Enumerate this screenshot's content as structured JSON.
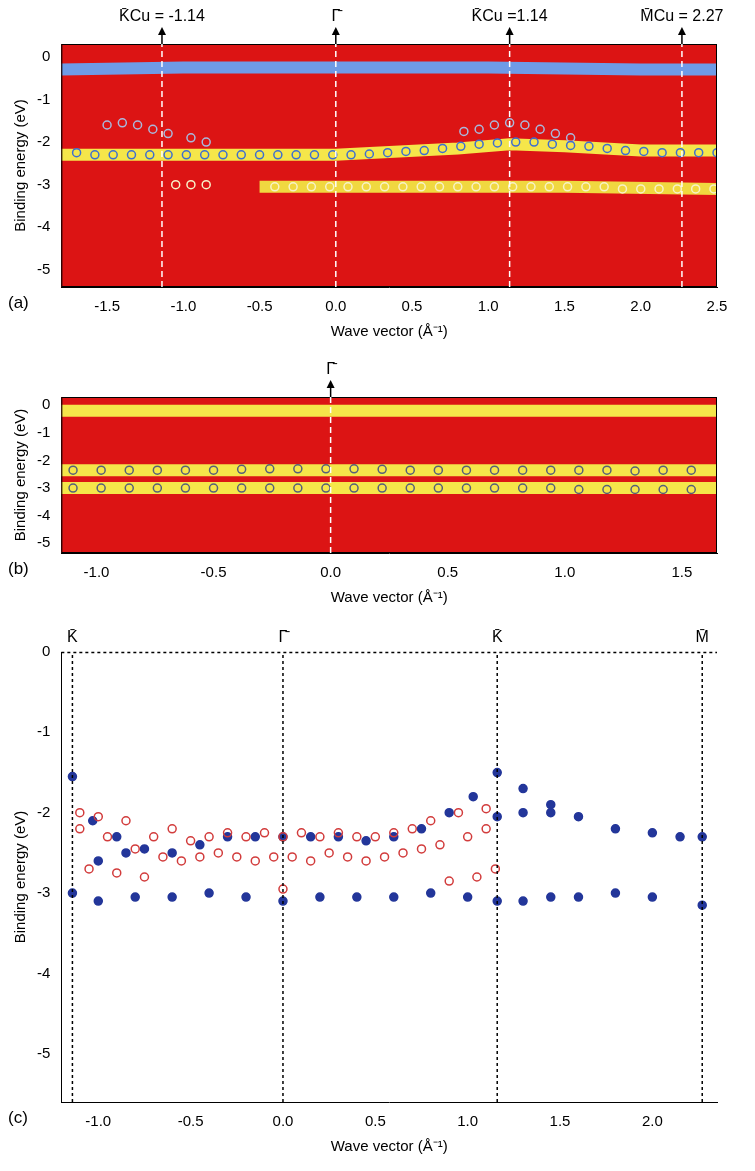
{
  "chart_data": [
    {
      "type": "scatter",
      "panel": "(a)",
      "color": "#dc1414",
      "grid": false,
      "legend": "none",
      "x_label": "Wave vector (Å⁻¹)",
      "y_label": "Binding energy (eV)",
      "xlim": [
        -1.8,
        2.5
      ],
      "xticks": [
        -1.5,
        {
          "value": -1,
          "label": "-1.0"
        },
        -0.5,
        {
          "value": 0,
          "label": "0.0"
        },
        0.5,
        {
          "value": 1,
          "label": "1.0"
        },
        1.5,
        {
          "value": 2,
          "label": "2.0"
        },
        2.5
      ],
      "ylim": [
        -5.4,
        0.3
      ],
      "yticks": [
        0,
        -1,
        -2,
        -3,
        -4,
        -5
      ],
      "annotations": [
        {
          "x": -1.14,
          "text": "K̄Cu = -1.14"
        },
        {
          "x": 0,
          "text": "Γ̄"
        },
        {
          "x": 1.14,
          "text": "K̄Cu =1.14"
        },
        {
          "x": 2.27,
          "text": "M̄Cu = 2.27"
        }
      ],
      "series": [
        {
          "type": "line",
          "marker": "none",
          "line_style": "solid",
          "color": "#6f9be6",
          "x": [
            -1.8,
            -1.0,
            0.0,
            1.0,
            2.0,
            2.5
          ],
          "values": [
            -0.3,
            -0.25,
            -0.25,
            -0.25,
            -0.3,
            -0.3
          ]
        },
        {
          "type": "line",
          "marker": "none",
          "line_style": "solid",
          "color": "#f5e64a",
          "x": [
            -1.8,
            -1.0,
            0.0,
            0.8,
            1.14,
            1.5,
            2.0,
            2.5
          ],
          "values": [
            -2.3,
            -2.3,
            -2.3,
            -2.15,
            -2.05,
            -2.1,
            -2.2,
            -2.2
          ]
        },
        {
          "type": "line",
          "marker": "none",
          "line_style": "solid",
          "color": "#f0d840",
          "x": [
            -0.5,
            0.5,
            1.5,
            2.5
          ],
          "values": [
            -3.05,
            -3.05,
            -3.05,
            -3.1
          ]
        },
        {
          "type": "scatter",
          "marker": "open_circle",
          "color": "#3d6fd0",
          "x": [
            -1.7,
            -1.58,
            -1.46,
            -1.34,
            -1.22,
            -1.1,
            -0.98,
            -0.86,
            -0.74,
            -0.62,
            -0.5,
            -0.38,
            -0.26,
            -0.14,
            -0.02,
            0.1,
            0.22,
            0.34,
            0.46,
            0.58,
            0.7,
            0.82,
            0.94,
            1.06,
            1.18,
            1.3,
            1.42,
            1.54,
            1.66,
            1.78,
            1.9,
            2.02,
            2.14,
            2.26,
            2.38,
            2.5
          ],
          "values": [
            -2.25,
            -2.3,
            -2.3,
            -2.3,
            -2.3,
            -2.3,
            -2.3,
            -2.3,
            -2.3,
            -2.3,
            -2.3,
            -2.3,
            -2.3,
            -2.3,
            -2.3,
            -2.3,
            -2.28,
            -2.25,
            -2.22,
            -2.2,
            -2.15,
            -2.1,
            -2.05,
            -2.02,
            -2.0,
            -2.0,
            -2.05,
            -2.08,
            -2.1,
            -2.15,
            -2.2,
            -2.22,
            -2.25,
            -2.25,
            -2.25,
            -2.25
          ]
        },
        {
          "type": "scatter",
          "marker": "open_circle",
          "color": "#a9b8dc",
          "x": [
            -1.5,
            -1.4,
            -1.3,
            -1.2,
            -1.1,
            -0.95,
            -0.85,
            0.84,
            0.94,
            1.04,
            1.14,
            1.24,
            1.34,
            1.44,
            1.54
          ],
          "values": [
            -1.6,
            -1.55,
            -1.6,
            -1.7,
            -1.8,
            -1.9,
            -2.0,
            -1.75,
            -1.7,
            -1.6,
            -1.55,
            -1.6,
            -1.7,
            -1.8,
            -1.9
          ]
        },
        {
          "type": "scatter",
          "marker": "open_circle",
          "color": "#f7f2c8",
          "x": [
            -1.05,
            -0.95,
            -0.85,
            -0.4,
            -0.28,
            -0.16,
            -0.04,
            0.08,
            0.2,
            0.32,
            0.44,
            0.56,
            0.68,
            0.8,
            0.92,
            1.04,
            1.16,
            1.28,
            1.4,
            1.52,
            1.64,
            1.76,
            1.88,
            2.0,
            2.12,
            2.24,
            2.36,
            2.48
          ],
          "values": [
            -3.0,
            -3.0,
            -3.0,
            -3.05,
            -3.05,
            -3.05,
            -3.05,
            -3.05,
            -3.05,
            -3.05,
            -3.05,
            -3.05,
            -3.05,
            -3.05,
            -3.05,
            -3.05,
            -3.05,
            -3.05,
            -3.05,
            -3.05,
            -3.05,
            -3.05,
            -3.1,
            -3.1,
            -3.1,
            -3.1,
            -3.1,
            -3.1
          ]
        }
      ]
    },
    {
      "type": "scatter",
      "panel": "(b)",
      "color": "#dc1414",
      "grid": false,
      "legend": "none",
      "x_label": "Wave vector (Å⁻¹)",
      "y_label": "Binding energy (eV)",
      "xlim": [
        -1.15,
        1.65
      ],
      "xticks": [
        {
          "value": -1,
          "label": "-1.0"
        },
        -0.5,
        {
          "value": 0,
          "label": "0.0"
        },
        0.5,
        {
          "value": 1,
          "label": "1.0"
        },
        1.5
      ],
      "ylim": [
        -5.35,
        0.3
      ],
      "yticks": [
        0,
        -1,
        -2,
        -3,
        -4,
        -5
      ],
      "annotations": [
        {
          "x": 0,
          "text": "Γ̄"
        }
      ],
      "series": [
        {
          "type": "line",
          "marker": "none",
          "line_style": "solid",
          "color": "#f5e64a",
          "x": [
            -1.15,
            1.65
          ],
          "values": [
            -0.2,
            -0.2
          ]
        },
        {
          "type": "line",
          "marker": "none",
          "line_style": "solid",
          "color": "#f5e64a",
          "x": [
            -1.15,
            1.65
          ],
          "values": [
            -2.35,
            -2.35
          ]
        },
        {
          "type": "line",
          "marker": "none",
          "line_style": "solid",
          "color": "#f5e64a",
          "x": [
            -1.15,
            1.65
          ],
          "values": [
            -3.0,
            -3.0
          ]
        },
        {
          "type": "scatter",
          "marker": "open_circle",
          "color": "#55607a",
          "x": [
            -1.1,
            -0.98,
            -0.86,
            -0.74,
            -0.62,
            -0.5,
            -0.38,
            -0.26,
            -0.14,
            -0.02,
            0.1,
            0.22,
            0.34,
            0.46,
            0.58,
            0.7,
            0.82,
            0.94,
            1.06,
            1.18,
            1.3,
            1.42,
            1.54
          ],
          "values": [
            -2.35,
            -2.35,
            -2.35,
            -2.35,
            -2.35,
            -2.35,
            -2.32,
            -2.3,
            -2.3,
            -2.3,
            -2.3,
            -2.32,
            -2.35,
            -2.35,
            -2.35,
            -2.35,
            -2.35,
            -2.35,
            -2.35,
            -2.35,
            -2.38,
            -2.35,
            -2.35
          ]
        },
        {
          "type": "scatter",
          "marker": "open_circle",
          "color": "#55607a",
          "x": [
            -1.1,
            -0.98,
            -0.86,
            -0.74,
            -0.62,
            -0.5,
            -0.38,
            -0.26,
            -0.14,
            -0.02,
            0.1,
            0.22,
            0.34,
            0.46,
            0.58,
            0.7,
            0.82,
            0.94,
            1.06,
            1.18,
            1.3,
            1.42,
            1.54
          ],
          "values": [
            -3.0,
            -3.0,
            -3.0,
            -3.0,
            -3.0,
            -3.0,
            -3.0,
            -3.0,
            -3.0,
            -3.0,
            -3.0,
            -3.0,
            -3.0,
            -3.0,
            -3.0,
            -3.0,
            -3.0,
            -3.0,
            -3.05,
            -3.05,
            -3.05,
            -3.05,
            -3.05
          ]
        }
      ]
    },
    {
      "type": "scatter",
      "panel": "(c)",
      "grid": false,
      "legend": "none",
      "x_label": "Wave vector (Å⁻¹)",
      "y_label": "Binding energy (eV)",
      "xlim": [
        -1.2,
        2.35
      ],
      "xticks": [
        {
          "value": -1,
          "label": "-1.0"
        },
        -0.5,
        {
          "value": 0,
          "label": "0.0"
        },
        0.5,
        {
          "value": 1,
          "label": "1.0"
        },
        1.5,
        {
          "value": 2,
          "label": "2.0"
        }
      ],
      "ylim": [
        -5.6,
        0
      ],
      "yticks": [
        0,
        -1,
        -2,
        -3,
        -4,
        -5
      ],
      "annotations": [
        {
          "x": -1.14,
          "text": "K̄"
        },
        {
          "x": 0,
          "text": "Γ̄"
        },
        {
          "x": 1.16,
          "text": "K̄"
        },
        {
          "x": 2.27,
          "text": "M̄"
        }
      ],
      "series": [
        {
          "type": "scatter",
          "marker": "open_circle",
          "color": "#d23c3c",
          "x": [
            -1.1,
            -1.1,
            -1.05,
            -1.0,
            -0.95,
            -0.9,
            -0.85,
            -0.8,
            -0.75,
            -0.7,
            -0.65,
            -0.6,
            -0.55,
            -0.5,
            -0.45,
            -0.4,
            -0.35,
            -0.3,
            -0.25,
            -0.2,
            -0.15,
            -0.1,
            -0.05,
            0.0,
            0.0,
            0.05,
            0.1,
            0.15,
            0.2,
            0.25,
            0.3,
            0.35,
            0.4,
            0.45,
            0.5,
            0.55,
            0.6,
            0.65,
            0.7,
            0.75,
            0.8,
            0.85,
            0.9,
            0.95,
            1.0,
            1.05,
            1.1,
            1.1,
            1.15
          ],
          "values": [
            -2.0,
            -2.2,
            -2.7,
            -2.05,
            -2.3,
            -2.75,
            -2.1,
            -2.45,
            -2.8,
            -2.3,
            -2.55,
            -2.2,
            -2.6,
            -2.35,
            -2.55,
            -2.3,
            -2.5,
            -2.25,
            -2.55,
            -2.3,
            -2.6,
            -2.25,
            -2.55,
            -2.3,
            -2.95,
            -2.55,
            -2.25,
            -2.6,
            -2.3,
            -2.5,
            -2.25,
            -2.55,
            -2.3,
            -2.6,
            -2.3,
            -2.55,
            -2.25,
            -2.5,
            -2.2,
            -2.45,
            -2.1,
            -2.4,
            -2.85,
            -2.0,
            -2.3,
            -2.8,
            -1.95,
            -2.2,
            -2.7
          ]
        },
        {
          "type": "scatter",
          "marker": "filled_circle",
          "color": "#23369a",
          "x": [
            -1.14,
            -1.03,
            -0.9,
            -0.75,
            -0.6,
            -0.45,
            -0.3,
            -0.15,
            0.0,
            0.15,
            0.3,
            0.45,
            0.6,
            0.75,
            0.9,
            1.03,
            1.16,
            1.3,
            1.45,
            1.6,
            1.8,
            2.0,
            2.15,
            2.27,
            1.16,
            1.3,
            1.45,
            -1.0,
            -0.85,
            -1.14,
            -1.0,
            -0.8,
            -0.6,
            -0.4,
            -0.2,
            0.0,
            0.2,
            0.4,
            0.6,
            0.8,
            1.0,
            1.16,
            1.3,
            1.45,
            1.6,
            1.8,
            2.0,
            2.27
          ],
          "values": [
            -1.55,
            -2.1,
            -2.3,
            -2.45,
            -2.5,
            -2.4,
            -2.3,
            -2.3,
            -2.3,
            -2.3,
            -2.3,
            -2.35,
            -2.3,
            -2.2,
            -2.0,
            -1.8,
            -1.5,
            -1.7,
            -1.9,
            -2.05,
            -2.2,
            -2.25,
            -2.3,
            -2.3,
            -2.05,
            -2.0,
            -2.0,
            -2.6,
            -2.5,
            -3.0,
            -3.1,
            -3.05,
            -3.05,
            -3.0,
            -3.05,
            -3.1,
            -3.05,
            -3.05,
            -3.05,
            -3.0,
            -3.05,
            -3.1,
            -3.1,
            -3.05,
            -3.05,
            -3.0,
            -3.05,
            -3.15
          ]
        }
      ]
    }
  ]
}
